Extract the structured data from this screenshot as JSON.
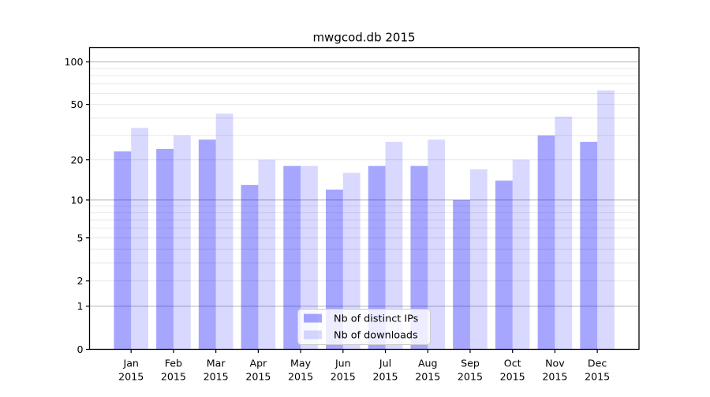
{
  "figure": {
    "title": "mwgcod.db 2015"
  },
  "chart_data": {
    "type": "bar",
    "title": "mwgcod.db 2015",
    "categories": [
      "Jan",
      "Feb",
      "Mar",
      "Apr",
      "May",
      "Jun",
      "Jul",
      "Aug",
      "Sep",
      "Oct",
      "Nov",
      "Dec"
    ],
    "year_label": "2015",
    "series": [
      {
        "name": "Nb of distinct IPs",
        "fill": "rgba(0,0,255,0.35)",
        "hex_on_white": "#a6a6ff",
        "values": [
          23,
          24,
          28,
          13,
          18,
          12,
          18,
          18,
          10,
          14,
          30,
          27
        ]
      },
      {
        "name": "Nb of downloads",
        "fill": "rgba(0,0,255,0.15)",
        "hex_on_white": "#d9d9ff",
        "values": [
          34,
          30,
          43,
          20,
          18,
          16,
          27,
          28,
          17,
          20,
          41,
          63
        ]
      }
    ],
    "y_scale": "log1p",
    "y_ticks": [
      0,
      1,
      2,
      5,
      10,
      20,
      50,
      100
    ],
    "ylim": [
      0,
      127
    ],
    "xlabel": "",
    "ylabel": "",
    "grid": "both",
    "grid_major_values": [
      1,
      10,
      100
    ],
    "grid_minor_values": [
      2,
      3,
      4,
      5,
      6,
      7,
      8,
      9,
      20,
      30,
      40,
      50,
      60,
      70,
      80,
      90
    ],
    "legend_position": "lower center"
  },
  "colors": {
    "bar_distinct_ips": "#a6a6ff",
    "bar_downloads": "#d9d9ff",
    "grid_major": "#b4b4b4",
    "grid_minor": "#e7e7e7",
    "axis_line": "#000000",
    "legend_border": "#cccccc",
    "legend_bg": "rgba(255,255,255,0.8)",
    "text": "#000000"
  }
}
